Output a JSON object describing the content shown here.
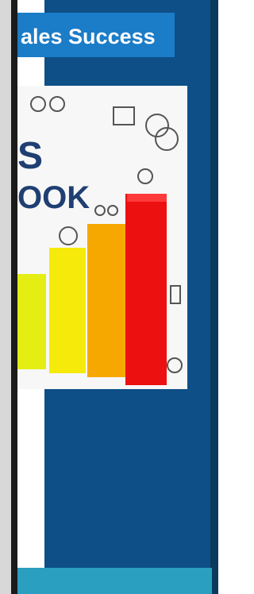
{
  "banner": {
    "title": "ales Success"
  },
  "cover": {
    "title_line1": "S",
    "title_line2": "OOK"
  }
}
